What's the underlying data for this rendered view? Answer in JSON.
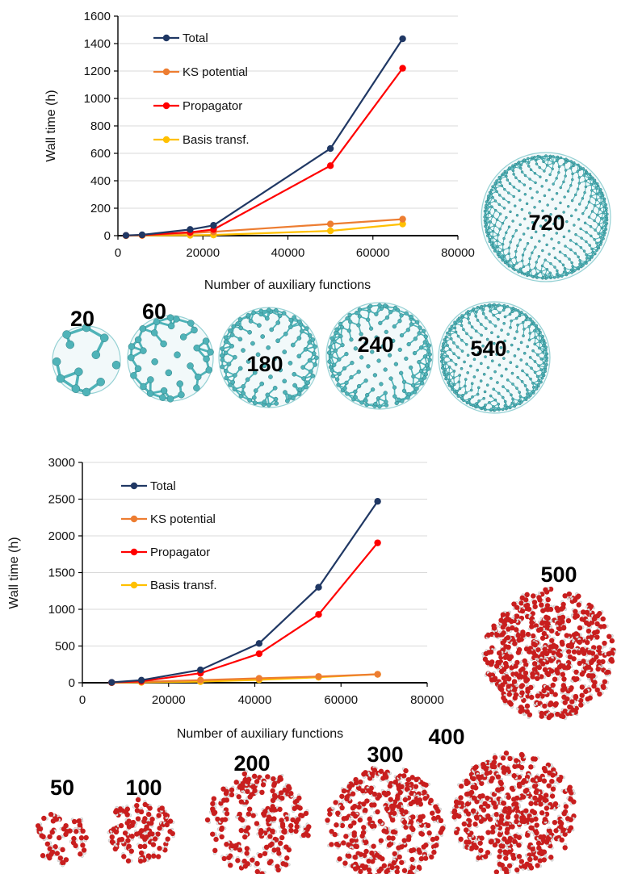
{
  "chart_data": [
    {
      "type": "line",
      "title": "",
      "xlabel": "Number of auxiliary functions",
      "ylabel": "Wall time (h)",
      "xlim": [
        0,
        80000
      ],
      "ylim": [
        0,
        1600
      ],
      "xticks": [
        0,
        20000,
        40000,
        60000,
        80000
      ],
      "yticks": [
        0,
        200,
        400,
        600,
        800,
        1000,
        1200,
        1400,
        1600
      ],
      "grid": "horizontal",
      "legend_position": "top-left",
      "series": [
        {
          "name": "Total",
          "color": "#203864",
          "points": [
            [
              1900,
              2
            ],
            [
              5700,
              6
            ],
            [
              17000,
              45
            ],
            [
              22500,
              75
            ],
            [
              50000,
              635
            ],
            [
              67000,
              1435
            ]
          ]
        },
        {
          "name": "KS potential",
          "color": "#ed7d31",
          "points": [
            [
              1900,
              1
            ],
            [
              5700,
              3
            ],
            [
              17000,
              18
            ],
            [
              22500,
              28
            ],
            [
              50000,
              85
            ],
            [
              67000,
              120
            ]
          ]
        },
        {
          "name": "Propagator",
          "color": "#ff0000",
          "points": [
            [
              1900,
              1
            ],
            [
              5700,
              4
            ],
            [
              17000,
              25
            ],
            [
              22500,
              45
            ],
            [
              50000,
              510
            ],
            [
              67000,
              1220
            ]
          ]
        },
        {
          "name": "Basis transf.",
          "color": "#ffc000",
          "points": [
            [
              1900,
              0
            ],
            [
              5700,
              1
            ],
            [
              17000,
              3
            ],
            [
              22500,
              5
            ],
            [
              50000,
              35
            ],
            [
              67000,
              85
            ]
          ]
        }
      ],
      "annotations": [
        "20",
        "60",
        "180",
        "240",
        "540",
        "720"
      ]
    },
    {
      "type": "line",
      "title": "",
      "xlabel": "Number of auxiliary functions",
      "ylabel": "Wall time (h)",
      "xlim": [
        0,
        80000
      ],
      "ylim": [
        0,
        3000
      ],
      "xticks": [
        0,
        20000,
        40000,
        60000,
        80000
      ],
      "yticks": [
        0,
        500,
        1000,
        1500,
        2000,
        2500,
        3000
      ],
      "grid": "horizontal",
      "legend_position": "top-left",
      "series": [
        {
          "name": "Total",
          "color": "#203864",
          "points": [
            [
              6800,
              5
            ],
            [
              13700,
              35
            ],
            [
              27400,
              175
            ],
            [
              41000,
              535
            ],
            [
              54800,
              1300
            ],
            [
              68500,
              2470
            ]
          ]
        },
        {
          "name": "KS potential",
          "color": "#ed7d31",
          "points": [
            [
              6800,
              3
            ],
            [
              13700,
              12
            ],
            [
              27400,
              35
            ],
            [
              41000,
              60
            ],
            [
              54800,
              85
            ],
            [
              68500,
              115
            ]
          ]
        },
        {
          "name": "Propagator",
          "color": "#ff0000",
          "points": [
            [
              6800,
              3
            ],
            [
              13700,
              20
            ],
            [
              27400,
              130
            ],
            [
              41000,
              395
            ],
            [
              54800,
              930
            ],
            [
              68500,
              1905
            ]
          ]
        },
        {
          "name": "Basis transf.",
          "color": "#ffc000",
          "points": [
            [
              6800,
              1
            ],
            [
              13700,
              5
            ],
            [
              27400,
              15
            ],
            [
              41000,
              40
            ],
            [
              54800,
              75
            ],
            [
              68500,
              115
            ]
          ]
        }
      ],
      "annotations": [
        "50",
        "100",
        "200",
        "300",
        "400",
        "500"
      ]
    }
  ],
  "illustrations": {
    "fullerene_color": "#4fb3b8",
    "water_oxygen_color": "#c81e1e",
    "water_hydrogen_color": "#e6e6e6",
    "fullerene_icon": "carbon-fullerene-cage",
    "water_icon": "water-molecule-cluster"
  }
}
